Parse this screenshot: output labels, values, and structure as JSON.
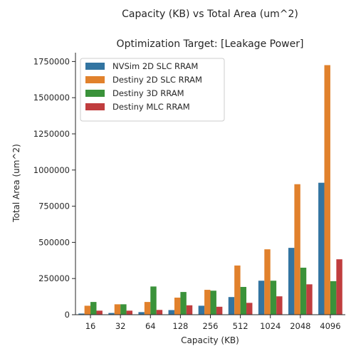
{
  "chart_data": {
    "type": "bar",
    "title": "Capacity (KB) vs Total Area (um^2)",
    "subtitle": "Optimization Target: [Leakage Power]",
    "xlabel": "Capacity (KB)",
    "ylabel": "Total Area (um^2)",
    "categories": [
      "16",
      "32",
      "64",
      "128",
      "256",
      "512",
      "1024",
      "2048",
      "4096"
    ],
    "ylim": [
      0,
      1811000
    ],
    "yticks": [
      0,
      250000,
      500000,
      750000,
      1000000,
      1250000,
      1500000,
      1750000
    ],
    "ytick_labels": [
      "0",
      "250000",
      "500000",
      "750000",
      "1000000",
      "1250000",
      "1500000",
      "1750000"
    ],
    "grid": false,
    "legend_position": "top-left",
    "series": [
      {
        "name": "NVSim 2D SLC RRAM",
        "color": "#3274a1",
        "values": [
          8000,
          12000,
          18000,
          32000,
          62000,
          122000,
          235000,
          462000,
          912000
        ]
      },
      {
        "name": "Destiny 2D SLC RRAM",
        "color": "#e1812c",
        "values": [
          62000,
          72000,
          88000,
          118000,
          172000,
          340000,
          452000,
          902000,
          1725000
        ]
      },
      {
        "name": "Destiny 3D RRAM",
        "color": "#3a923a",
        "values": [
          88000,
          72000,
          195000,
          157000,
          166000,
          192000,
          235000,
          325000,
          232000
        ]
      },
      {
        "name": "Destiny MLC RRAM",
        "color": "#c03d3e",
        "values": [
          28000,
          28000,
          33000,
          65000,
          55000,
          82000,
          127000,
          210000,
          383000
        ]
      }
    ]
  }
}
